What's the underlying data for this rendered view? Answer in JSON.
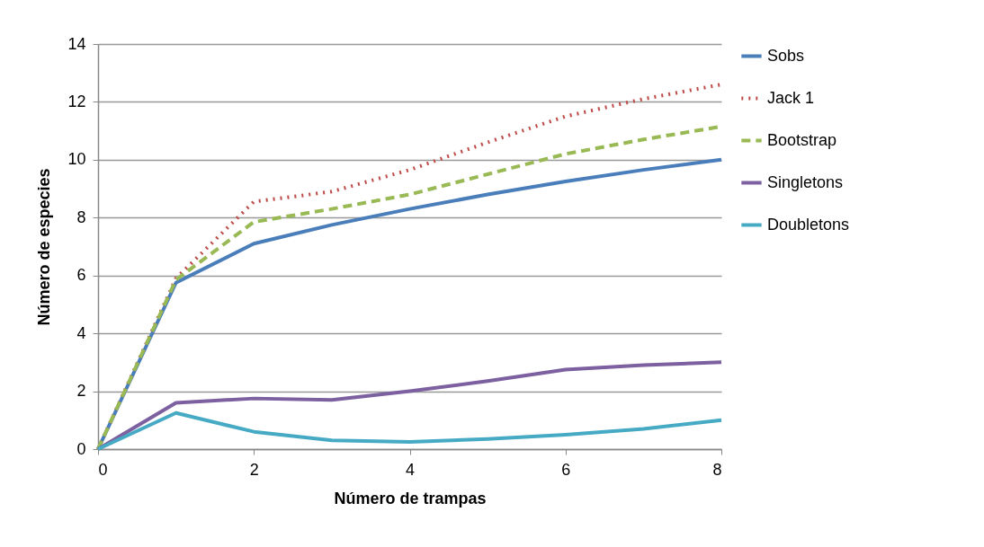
{
  "chart_data": {
    "type": "line",
    "xlabel": "Número de trampas",
    "ylabel": "Número de especies",
    "x": [
      0,
      1,
      2,
      3,
      4,
      5,
      6,
      7,
      8
    ],
    "xlim": [
      0,
      8
    ],
    "xticks": [
      0,
      2,
      4,
      6,
      8
    ],
    "ylim": [
      0,
      14
    ],
    "yticks": [
      0,
      2,
      4,
      6,
      8,
      10,
      12,
      14
    ],
    "grid": "y",
    "legend": "right",
    "marker": "none",
    "series": [
      {
        "name": "Sobs",
        "color": "#4a7ebb",
        "line_style": "solid",
        "values": [
          0,
          5.75,
          7.1,
          7.75,
          8.3,
          8.8,
          9.25,
          9.65,
          10
        ]
      },
      {
        "name": "Jack 1",
        "color": "#be4b48",
        "line_style": "dotted",
        "values": [
          0,
          5.9,
          8.55,
          8.9,
          9.65,
          10.6,
          11.5,
          12.1,
          12.6
        ]
      },
      {
        "name": "Bootstrap",
        "color": "#98b954",
        "line_style": "dashed",
        "values": [
          0,
          5.85,
          7.85,
          8.3,
          8.8,
          9.5,
          10.2,
          10.7,
          11.15
        ]
      },
      {
        "name": "Singletons",
        "color": "#7d60a0",
        "line_style": "solid",
        "values": [
          0,
          1.6,
          1.75,
          1.7,
          2.0,
          2.35,
          2.75,
          2.9,
          3.0
        ]
      },
      {
        "name": "Doubletons",
        "color": "#46aac5",
        "line_style": "solid",
        "values": [
          0,
          1.25,
          0.6,
          0.3,
          0.25,
          0.35,
          0.5,
          0.7,
          1.0
        ]
      }
    ]
  }
}
